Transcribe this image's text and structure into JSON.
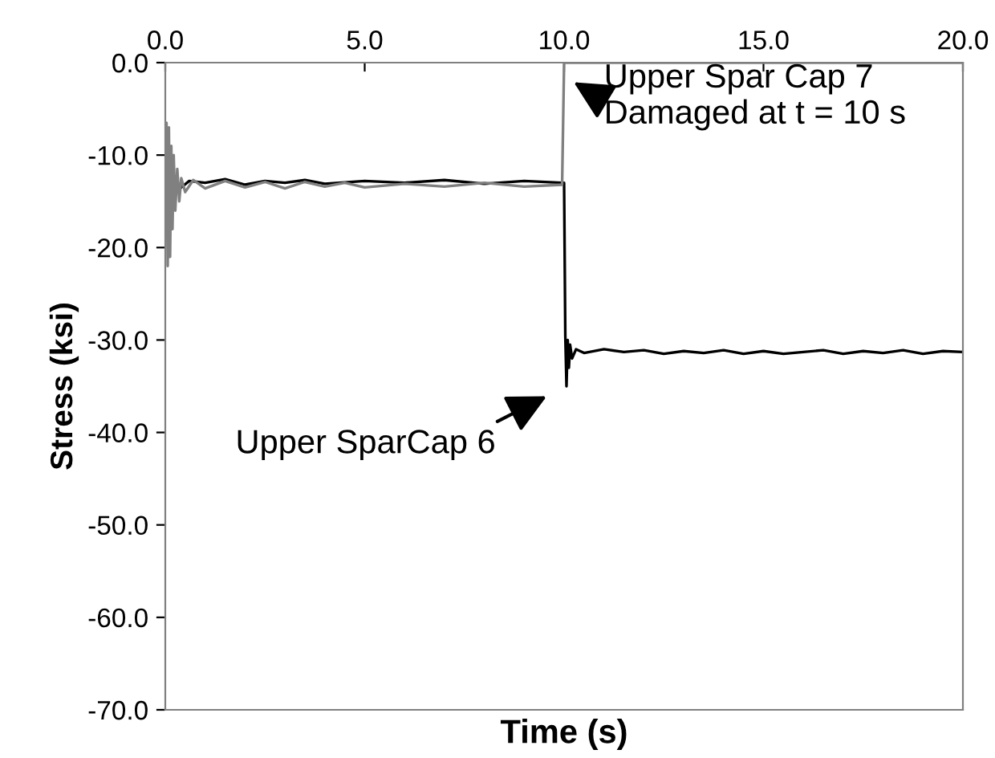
{
  "chart_data": {
    "type": "line",
    "xlabel": "Time (s)",
    "ylabel": "Stress (ksi)",
    "xlim": [
      0,
      20
    ],
    "ylim": [
      -70,
      0
    ],
    "xticks": [
      {
        "value": 0,
        "label": "0.0"
      },
      {
        "value": 5,
        "label": "5.0"
      },
      {
        "value": 10,
        "label": "10.0"
      },
      {
        "value": 15,
        "label": "15.0"
      },
      {
        "value": 20,
        "label": "20.0"
      }
    ],
    "yticks": [
      {
        "value": -70,
        "label": "-70.0"
      },
      {
        "value": -60,
        "label": "-60.0"
      },
      {
        "value": -50,
        "label": "-50.0"
      },
      {
        "value": -40,
        "label": "-40.0"
      },
      {
        "value": -30,
        "label": "-30.0"
      },
      {
        "value": -20,
        "label": "-20.0"
      },
      {
        "value": -10,
        "label": "-10.0"
      },
      {
        "value": 0,
        "label": "0.0"
      }
    ],
    "grid": false,
    "legend": false,
    "marker": "none",
    "line_style": "solid",
    "series": [
      {
        "color": "#000000",
        "x": [
          0.4,
          0.6,
          1.0,
          1.5,
          2.0,
          2.5,
          3.0,
          3.5,
          4.0,
          5.0,
          6.0,
          7.0,
          8.0,
          9.0,
          9.95,
          10.0,
          10.03,
          10.06,
          10.09,
          10.12,
          10.15,
          10.2,
          10.3,
          10.5,
          11.0,
          11.5,
          12.0,
          12.5,
          13.0,
          13.5,
          14.0,
          14.5,
          15.0,
          15.5,
          16.0,
          16.5,
          17.0,
          17.5,
          18.0,
          18.5,
          19.0,
          19.5,
          20.0
        ],
        "values": [
          -13.5,
          -12.8,
          -13,
          -12.6,
          -13.2,
          -12.8,
          -13,
          -12.7,
          -13.1,
          -12.8,
          -13,
          -12.7,
          -13.1,
          -12.8,
          -13,
          -13,
          -29.5,
          -35,
          -30,
          -33,
          -30.5,
          -32,
          -31,
          -31.4,
          -31,
          -31.3,
          -31.1,
          -31.5,
          -31.2,
          -31.4,
          -31.1,
          -31.5,
          -31.2,
          -31.5,
          -31.3,
          -31.1,
          -31.5,
          -31.2,
          -31.4,
          -31.1,
          -31.5,
          -31.2,
          -31.3
        ]
      },
      {
        "color": "#808080",
        "x": [
          0,
          0.03,
          0.06,
          0.09,
          0.12,
          0.15,
          0.18,
          0.21,
          0.25,
          0.3,
          0.35,
          0.4,
          0.5,
          0.7,
          1.0,
          1.5,
          2.0,
          2.5,
          3.0,
          3.5,
          4.0,
          4.5,
          5.0,
          6.0,
          7.0,
          8.0,
          9.0,
          9.95,
          10.0,
          20.0
        ],
        "values": [
          -13,
          -6.5,
          -22,
          -7,
          -21,
          -9,
          -18,
          -10,
          -16,
          -11.5,
          -15,
          -12.5,
          -14,
          -12.7,
          -13.6,
          -12.8,
          -13.5,
          -12.9,
          -13.6,
          -12.9,
          -13.4,
          -13,
          -13.5,
          -13.1,
          -13.4,
          -13,
          -13.4,
          -13.2,
          0,
          0
        ]
      }
    ],
    "annotations": [
      {
        "text": "Upper Spar Cap 7\nDamaged at t = 10 s",
        "x": 10,
        "y": -1.5
      },
      {
        "text": "Upper SparCap 6",
        "x": 10.06,
        "y": -35
      }
    ]
  }
}
